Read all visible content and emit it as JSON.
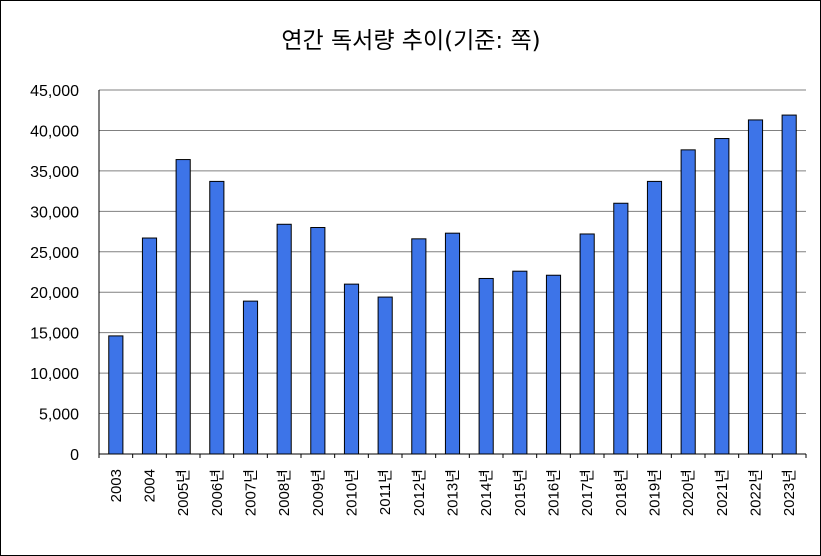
{
  "chart_data": {
    "type": "bar",
    "title": "연간 독서량 추이(기준: 쪽)",
    "categories": [
      "2003",
      "2004",
      "2005년",
      "2006년",
      "2007년",
      "2008년",
      "2009년",
      "2010년",
      "2011년",
      "2012년",
      "2013년",
      "2014년",
      "2015년",
      "2016년",
      "2017년",
      "2018년",
      "2019년",
      "2020년",
      "2021년",
      "2022년",
      "2023년"
    ],
    "values": [
      14600,
      26700,
      36400,
      33700,
      18900,
      28400,
      28000,
      21000,
      19400,
      26600,
      27300,
      21700,
      22600,
      22100,
      27200,
      31000,
      33700,
      37600,
      39000,
      41300,
      41900
    ],
    "ylim": [
      0,
      45000
    ],
    "yticks": [
      0,
      5000,
      10000,
      15000,
      20000,
      25000,
      30000,
      35000,
      40000,
      45000
    ],
    "ytick_labels": [
      "0",
      "5,000",
      "10,000",
      "15,000",
      "20,000",
      "25,000",
      "30,000",
      "35,000",
      "40,000",
      "45,000"
    ],
    "xlabel": "",
    "ylabel": "",
    "grid": true,
    "legend": "none",
    "bar_color": "#3d74e8"
  }
}
